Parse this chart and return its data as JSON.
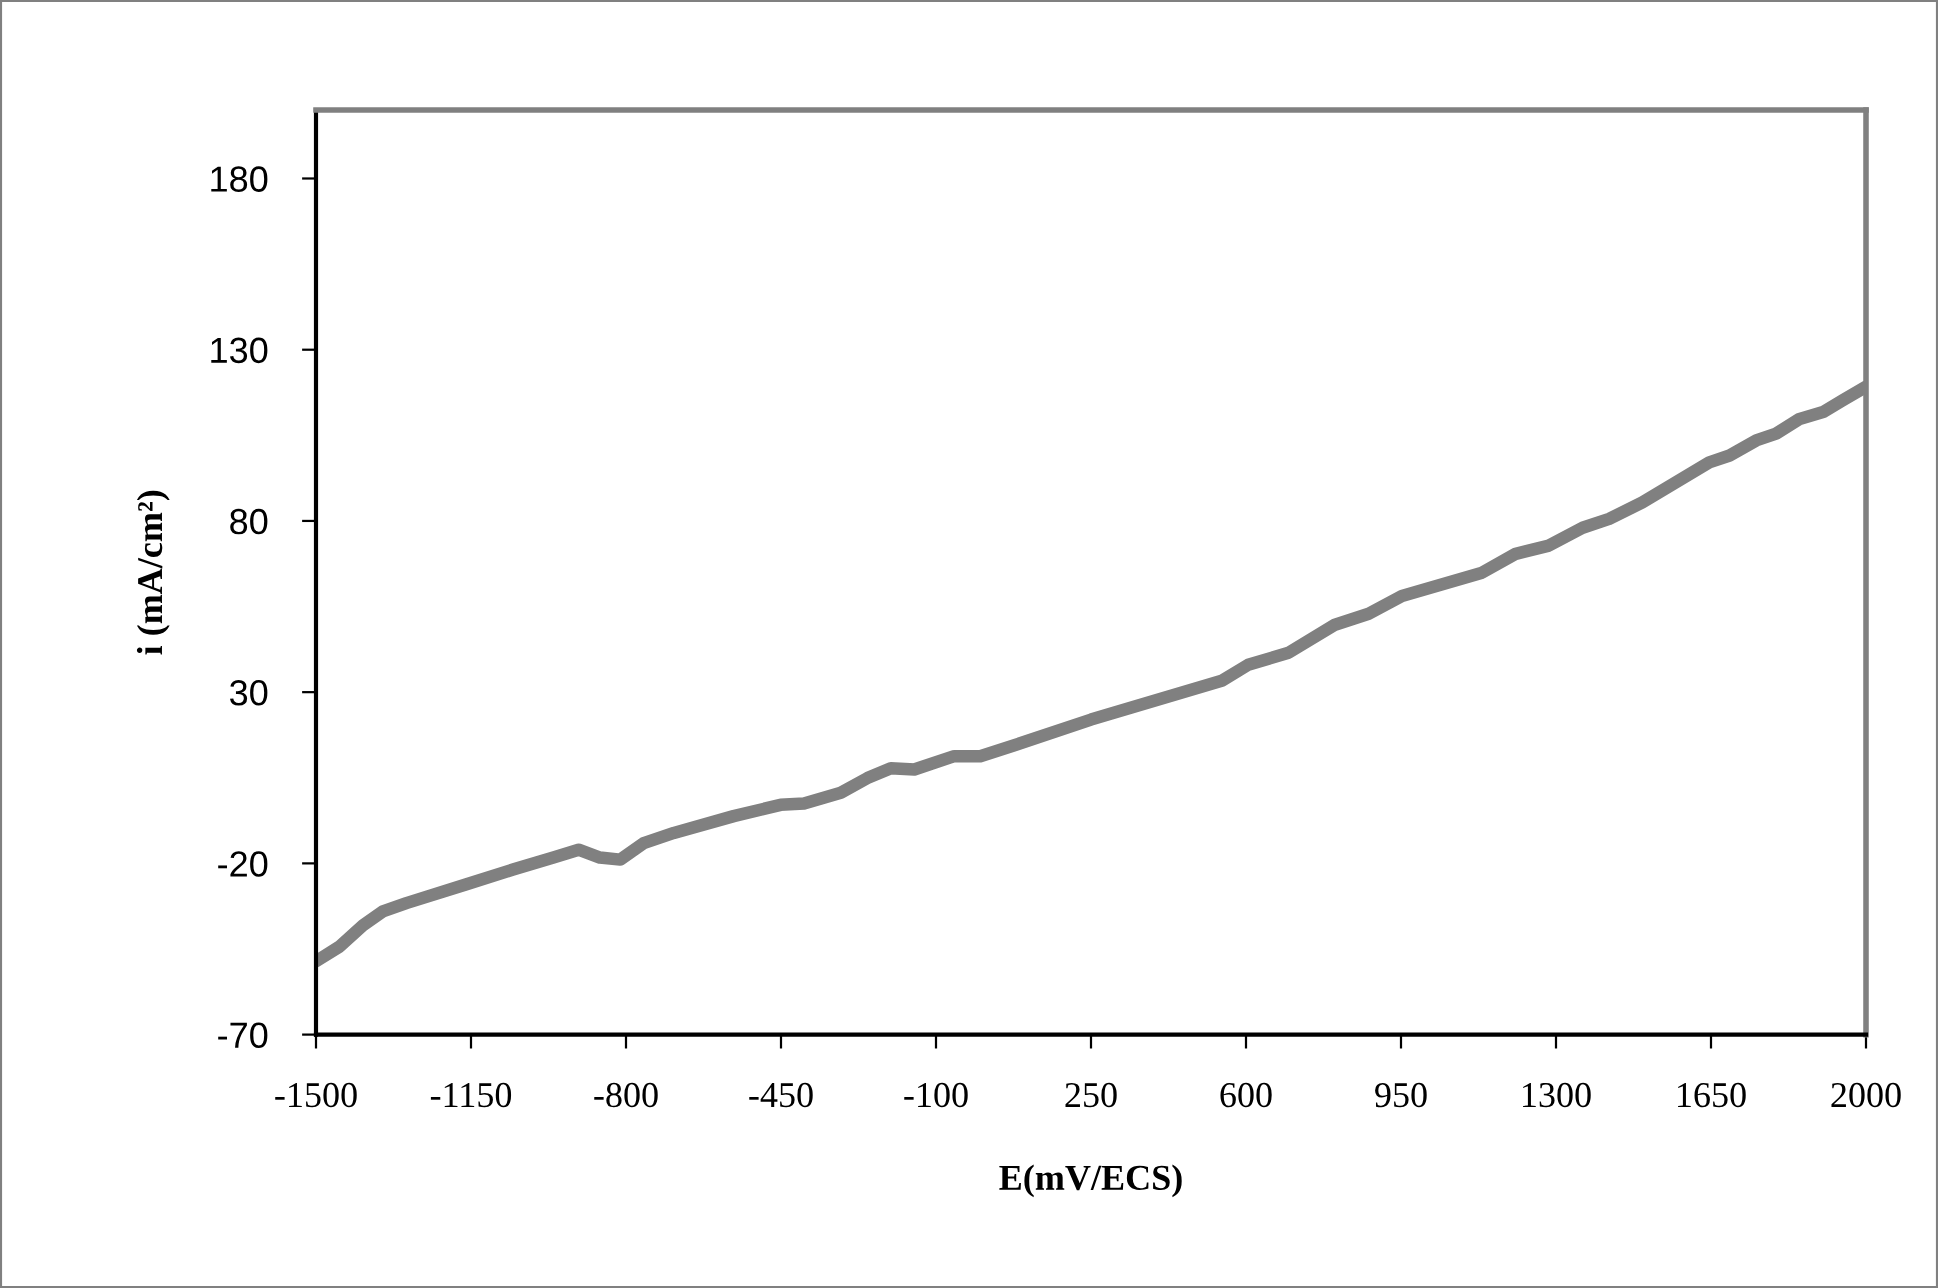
{
  "chart_data": {
    "type": "line",
    "xlabel": "E(mV/ECS)",
    "ylabel": "i (mA/cm²)",
    "x": [
      -1500,
      -1447,
      -1394,
      -1349,
      -1296,
      -1160,
      -1055,
      -964,
      -907,
      -859,
      -813,
      -760,
      -692,
      -557,
      -451,
      -398,
      -315,
      -255,
      -202,
      -149,
      -59,
      0,
      77,
      250,
      545,
      605,
      696,
      801,
      877,
      952,
      1133,
      1209,
      1284,
      1360,
      1420,
      1495,
      1646,
      1692,
      1752,
      1797,
      1850,
      1903,
      1948,
      2000
    ],
    "series": [
      {
        "color": "#808080",
        "values": [
          -48.6,
          -44.3,
          -38.1,
          -34.0,
          -31.6,
          -26.1,
          -21.8,
          -18.3,
          -16.0,
          -18.3,
          -18.9,
          -14.1,
          -11.1,
          -6.2,
          -2.9,
          -2.5,
          0.6,
          4.9,
          7.8,
          7.4,
          11.3,
          11.3,
          14.5,
          22.0,
          33.3,
          38.0,
          41.5,
          49.7,
          52.9,
          58.1,
          64.9,
          70.4,
          72.8,
          78.0,
          80.6,
          85.4,
          97.1,
          99.1,
          103.5,
          105.5,
          109.8,
          111.8,
          115.3,
          119.2
        ]
      }
    ],
    "xlim": [
      -1500,
      2000
    ],
    "xticks": [
      -1500,
      -1150,
      -800,
      -450,
      -100,
      250,
      600,
      950,
      1300,
      1650,
      2000
    ],
    "ylim": [
      -70,
      200
    ],
    "yticks": [
      -70,
      -20,
      30,
      80,
      130,
      180
    ],
    "grid": false,
    "legend": false,
    "marker": "none",
    "line_style": "solid"
  }
}
